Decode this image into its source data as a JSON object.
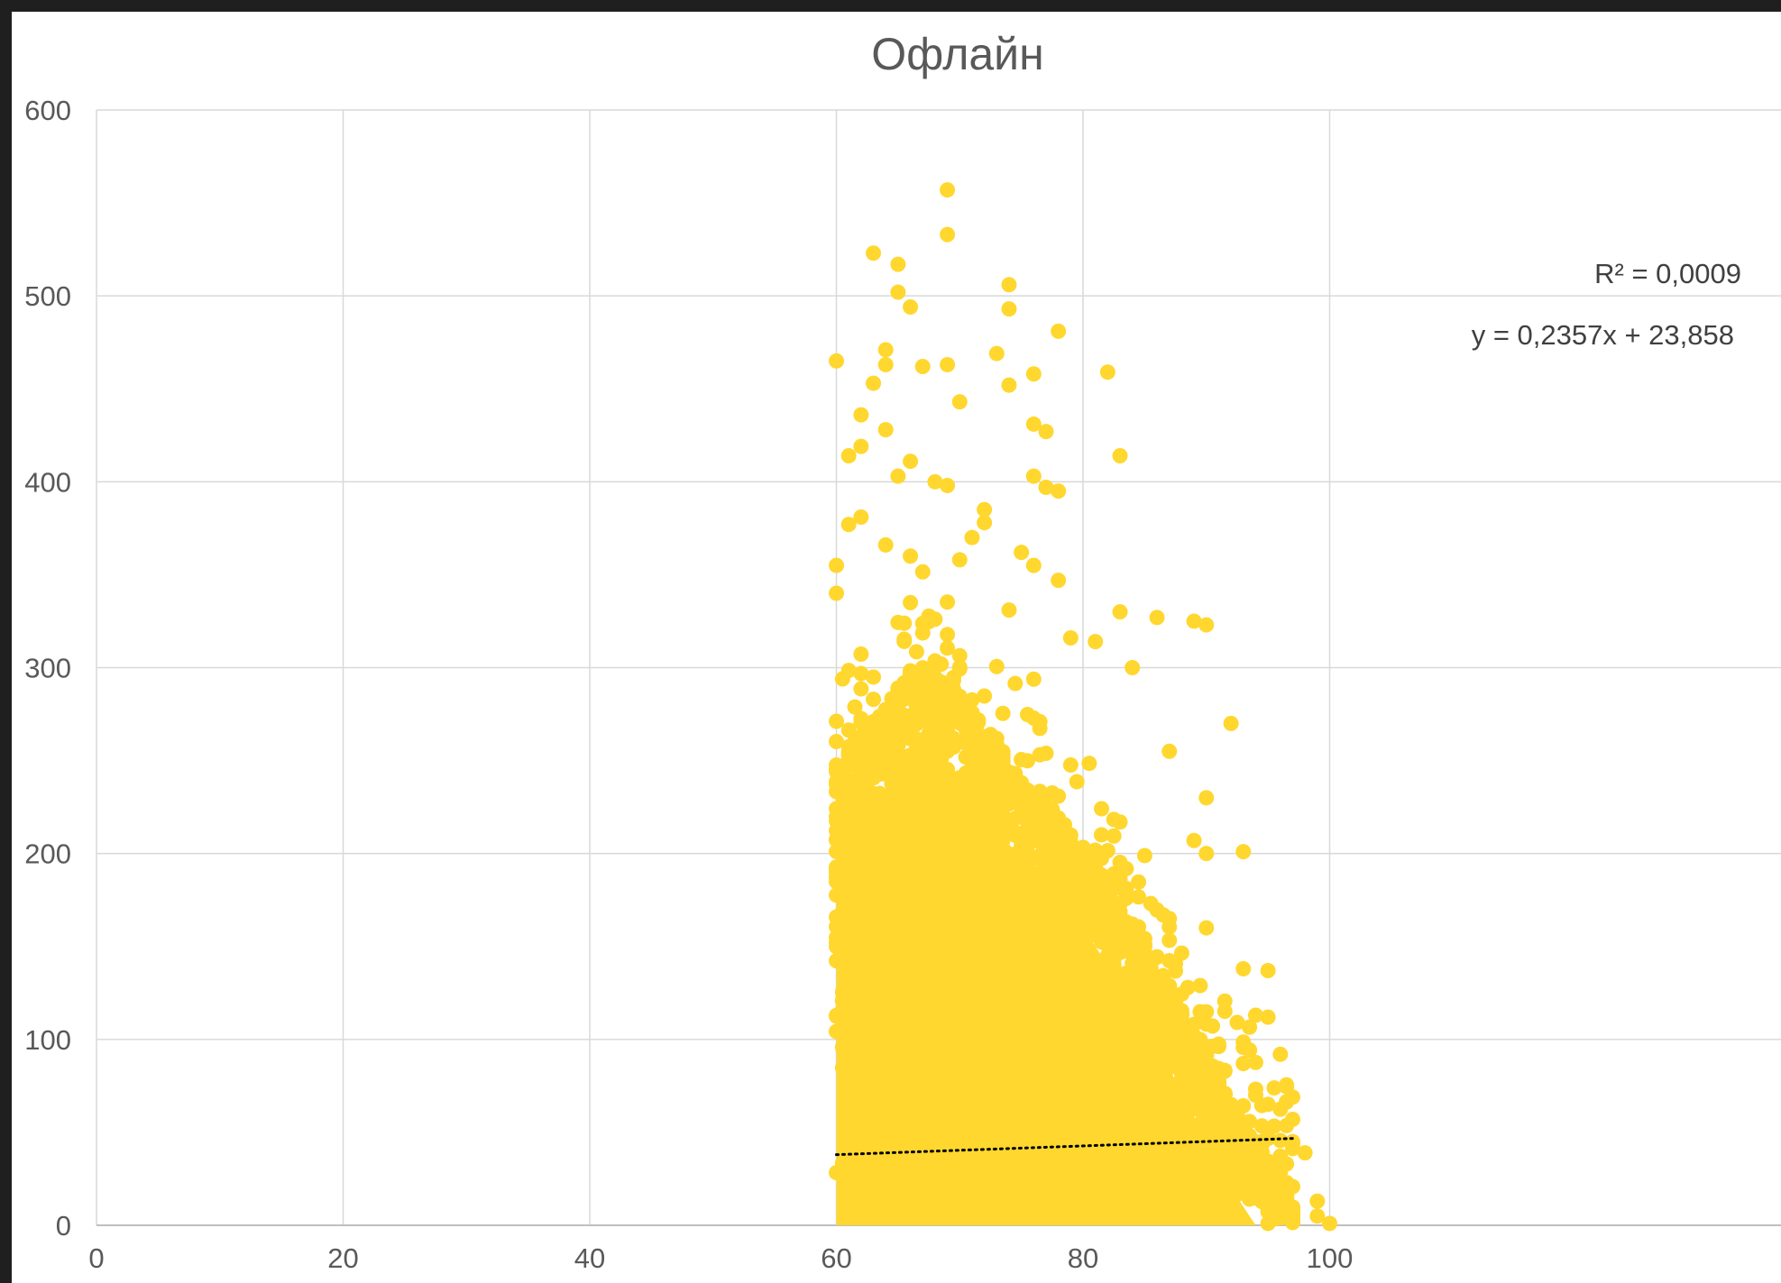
{
  "chart_data": {
    "type": "scatter",
    "title": "Офлайн",
    "xlabel": "",
    "ylabel": "",
    "xlim": [
      0,
      120
    ],
    "ylim": [
      0,
      600
    ],
    "x_ticks": [
      0,
      20,
      40,
      60,
      80,
      100
    ],
    "y_ticks": [
      0,
      100,
      200,
      300,
      400,
      500,
      600
    ],
    "grid": true,
    "legend": "none",
    "marker_color": "#FFD72E",
    "trendline_color": "#000000",
    "series": [
      {
        "points": [
          [
            69,
            557
          ],
          [
            69,
            533
          ],
          [
            63,
            523
          ],
          [
            65,
            517
          ],
          [
            65,
            502
          ],
          [
            66,
            494
          ],
          [
            74,
            506
          ],
          [
            74,
            493
          ],
          [
            78,
            481
          ],
          [
            73,
            469
          ],
          [
            64,
            471
          ],
          [
            64,
            463
          ],
          [
            60,
            465
          ],
          [
            67,
            462
          ],
          [
            69,
            463
          ],
          [
            76,
            458
          ],
          [
            82,
            459
          ],
          [
            63,
            453
          ],
          [
            74,
            452
          ],
          [
            70,
            443
          ],
          [
            62,
            436
          ],
          [
            76,
            431
          ],
          [
            77,
            427
          ],
          [
            64,
            428
          ],
          [
            62,
            419
          ],
          [
            61,
            414
          ],
          [
            83,
            414
          ],
          [
            76,
            403
          ],
          [
            65,
            403
          ],
          [
            66,
            411
          ],
          [
            68,
            400
          ],
          [
            69,
            398
          ],
          [
            77,
            397
          ],
          [
            78,
            395
          ],
          [
            72,
            385
          ],
          [
            72,
            378
          ],
          [
            62,
            381
          ],
          [
            61,
            377
          ],
          [
            60,
            355
          ],
          [
            60,
            340
          ],
          [
            64,
            366
          ],
          [
            66,
            360
          ],
          [
            70,
            358
          ],
          [
            75,
            362
          ],
          [
            76,
            355
          ],
          [
            71,
            370
          ],
          [
            66,
            335
          ],
          [
            74,
            331
          ],
          [
            78,
            347
          ],
          [
            83,
            330
          ],
          [
            86,
            327
          ],
          [
            89,
            325
          ],
          [
            90,
            323
          ],
          [
            81,
            314
          ],
          [
            79,
            316
          ],
          [
            84,
            300
          ],
          [
            92,
            270
          ],
          [
            87,
            255
          ],
          [
            90,
            230
          ],
          [
            89,
            207
          ],
          [
            90,
            200
          ],
          [
            93,
            201
          ],
          [
            87,
            165
          ],
          [
            90,
            160
          ],
          [
            93,
            138
          ],
          [
            95,
            137
          ],
          [
            95,
            112
          ],
          [
            94,
            113
          ],
          [
            96,
            92
          ],
          [
            93,
            87
          ],
          [
            94,
            70
          ],
          [
            97,
            69
          ],
          [
            97,
            57
          ],
          [
            97,
            45
          ],
          [
            98,
            39
          ],
          [
            96,
            15
          ],
          [
            99,
            13
          ],
          [
            99,
            5
          ],
          [
            100,
            1
          ],
          [
            95,
            1
          ]
        ]
      }
    ],
    "trendline": {
      "type": "linear",
      "slope": 0.2357,
      "intercept": 23.858,
      "x_range": [
        60,
        97
      ],
      "style": "dotted"
    },
    "annotations": {
      "r_squared": "R² = 0,0009",
      "equation": "y = 0,2357x + 23,858"
    }
  }
}
